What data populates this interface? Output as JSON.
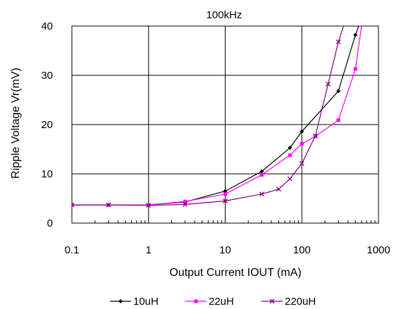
{
  "chart_data": {
    "type": "line",
    "title": "100kHz",
    "xlabel": "Output Current IOUT (mA)",
    "ylabel": "Ripple Voltage Vr(mV)",
    "x_scale": "log",
    "xlim": [
      0.1,
      1000
    ],
    "ylim": [
      0,
      40
    ],
    "x_ticks": [
      "0.1",
      "1",
      "10",
      "100",
      "1000"
    ],
    "y_ticks": [
      "0",
      "10",
      "20",
      "30",
      "40"
    ],
    "grid": true,
    "legend_position": "bottom",
    "series": [
      {
        "name": "10uH",
        "color": "#000000",
        "marker": "diamond",
        "points": [
          [
            0.1,
            3.7
          ],
          [
            0.3,
            3.7
          ],
          [
            1,
            3.7
          ],
          [
            3,
            4.3
          ],
          [
            10,
            6.5
          ],
          [
            30,
            10.5
          ],
          [
            70,
            15.3
          ],
          [
            100,
            18.6
          ],
          [
            300,
            26.8
          ],
          [
            500,
            38.2
          ],
          [
            550,
            40
          ]
        ]
      },
      {
        "name": "22uH",
        "color": "#ff00ff",
        "marker": "square",
        "points": [
          [
            0.1,
            3.7
          ],
          [
            0.3,
            3.7
          ],
          [
            1,
            3.7
          ],
          [
            3,
            4.4
          ],
          [
            10,
            5.9
          ],
          [
            30,
            9.8
          ],
          [
            70,
            13.8
          ],
          [
            100,
            16.1
          ],
          [
            150,
            17.6
          ],
          [
            300,
            20.9
          ],
          [
            500,
            31.3
          ],
          [
            600,
            40
          ]
        ]
      },
      {
        "name": "220uH",
        "color": "#800080",
        "marker": "x",
        "points": [
          [
            0.1,
            3.7
          ],
          [
            0.3,
            3.7
          ],
          [
            1,
            3.6
          ],
          [
            3,
            3.8
          ],
          [
            10,
            4.5
          ],
          [
            30,
            5.9
          ],
          [
            50,
            6.9
          ],
          [
            70,
            9.0
          ],
          [
            100,
            12.1
          ],
          [
            150,
            17.7
          ],
          [
            220,
            28.2
          ],
          [
            300,
            36.8
          ],
          [
            350,
            40
          ]
        ]
      }
    ]
  }
}
